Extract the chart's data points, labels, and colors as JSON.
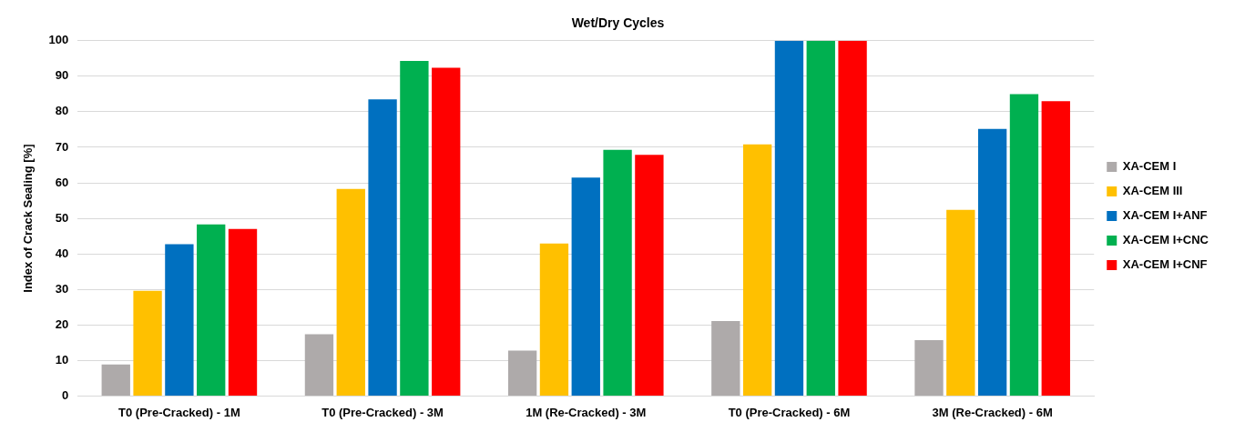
{
  "chart_data": {
    "type": "bar",
    "title": "Wet/Dry Cycles",
    "ylabel": "Index of Crack Sealing [%]",
    "categories": [
      "T0 (Pre-Cracked) - 1M",
      "T0 (Pre-Cracked) - 3M",
      "1M (Re-Cracked) - 3M",
      "T0 (Pre-Cracked) - 6M",
      "3M (Re-Cracked) - 6M"
    ],
    "series": [
      {
        "name": "XA-CEM I",
        "color": "#aeaaaa",
        "values": [
          8.9,
          17.4,
          12.8,
          21.1,
          15.7
        ]
      },
      {
        "name": "XA-CEM III",
        "color": "#ffc000",
        "values": [
          29.6,
          58.3,
          42.9,
          70.8,
          52.4
        ]
      },
      {
        "name": "XA-CEM I+ANF",
        "color": "#0070c0",
        "values": [
          42.7,
          83.5,
          61.5,
          100,
          75.2
        ]
      },
      {
        "name": "XA-CEM I+CNC",
        "color": "#00b050",
        "values": [
          48.3,
          94.3,
          69.3,
          100,
          85.0
        ]
      },
      {
        "name": "XA-CEM I+CNF",
        "color": "#ff0000",
        "values": [
          47.0,
          92.4,
          67.9,
          100,
          83.0
        ]
      }
    ],
    "ylim": [
      0,
      100
    ],
    "yticks": [
      0,
      10,
      20,
      30,
      40,
      50,
      60,
      70,
      80,
      90,
      100
    ],
    "grid": "y",
    "legend": "right"
  }
}
